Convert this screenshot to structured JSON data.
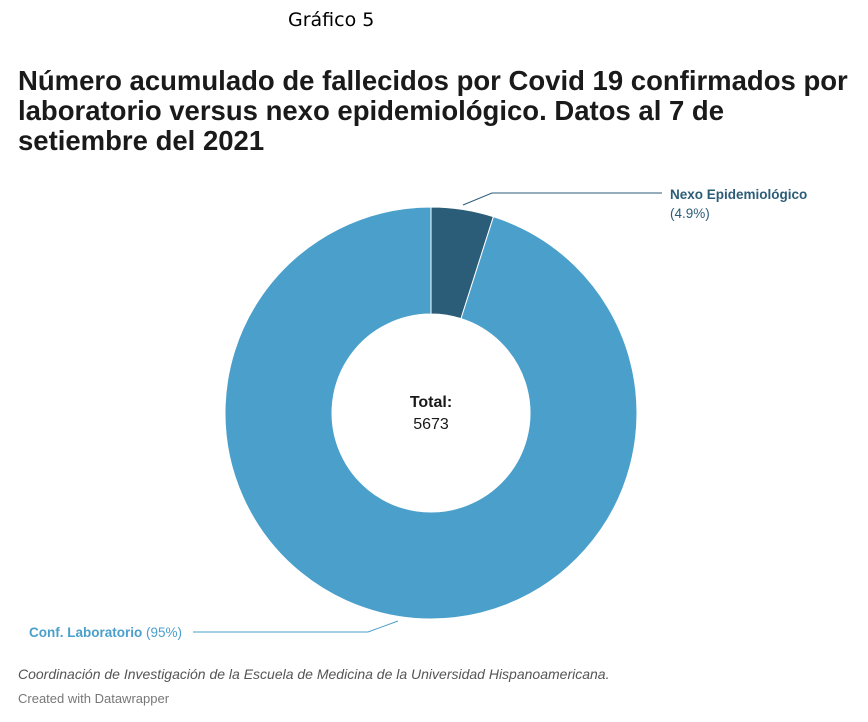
{
  "figure_label": "Gráfico 5",
  "chart_data": {
    "type": "pie",
    "variant": "donut",
    "title": "Número acumulado de fallecidos por Covid 19 confirmados por laboratorio versus nexo epidemiológico. Datos al 7 de setiembre del 2021",
    "center_label": "Total:",
    "center_value": "5673",
    "slices": [
      {
        "name": "Nexo Epidemiológico",
        "percent_label": "(4.9%)",
        "value": 4.9,
        "color": "#2c5d78"
      },
      {
        "name": "Conf. Laboratorio",
        "percent_label": "(95%)",
        "value": 95.1,
        "color": "#4a9fcb"
      }
    ]
  },
  "source": "Coordinación de Investigación de la Escuela de Medicina de la Universidad Hispanoamericana.",
  "credit": "Created with Datawrapper"
}
